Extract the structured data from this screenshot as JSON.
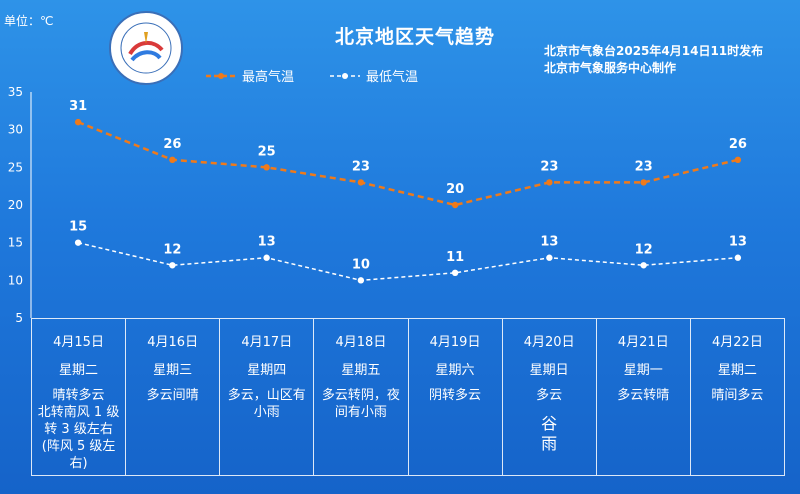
{
  "header": {
    "unit": "单位：℃",
    "title": "北京地区天气趋势",
    "publisher_line1": "北京市气象台2025年4月14日11时发布",
    "publisher_line2": "北京市气象服务中心制作"
  },
  "colors": {
    "high": "#ef7a1a",
    "low": "#ffffff"
  },
  "legend": {
    "high": "最高气温",
    "low": "最低气温"
  },
  "chart_data": {
    "type": "line",
    "categories": [
      "4月15日",
      "4月16日",
      "4月17日",
      "4月18日",
      "4月19日",
      "4月20日",
      "4月21日",
      "4月22日"
    ],
    "series": [
      {
        "name": "最高气温",
        "values": [
          31,
          26,
          25,
          23,
          20,
          23,
          23,
          26
        ]
      },
      {
        "name": "最低气温",
        "values": [
          15,
          12,
          13,
          10,
          11,
          13,
          12,
          13
        ]
      }
    ],
    "ylim": [
      5,
      35
    ],
    "yticks": [
      5,
      10,
      15,
      20,
      25,
      30,
      35
    ],
    "legend_position": "top-left",
    "grid": false
  },
  "days": [
    {
      "date": "4月15日",
      "weekday": "星期二",
      "desc": "晴转多云\n北转南风 1 级\n转 3 级左右\n(阵风 5 级左\n右)",
      "term": ""
    },
    {
      "date": "4月16日",
      "weekday": "星期三",
      "desc": "多云间晴",
      "term": ""
    },
    {
      "date": "4月17日",
      "weekday": "星期四",
      "desc": "多云，山区有\n小雨",
      "term": ""
    },
    {
      "date": "4月18日",
      "weekday": "星期五",
      "desc": "多云转阴，夜\n间有小雨",
      "term": ""
    },
    {
      "date": "4月19日",
      "weekday": "星期六",
      "desc": "阴转多云",
      "term": ""
    },
    {
      "date": "4月20日",
      "weekday": "星期日",
      "desc": "多云",
      "term": "谷\n雨"
    },
    {
      "date": "4月21日",
      "weekday": "星期一",
      "desc": "多云转晴",
      "term": ""
    },
    {
      "date": "4月22日",
      "weekday": "星期二",
      "desc": "晴间多云",
      "term": ""
    }
  ]
}
